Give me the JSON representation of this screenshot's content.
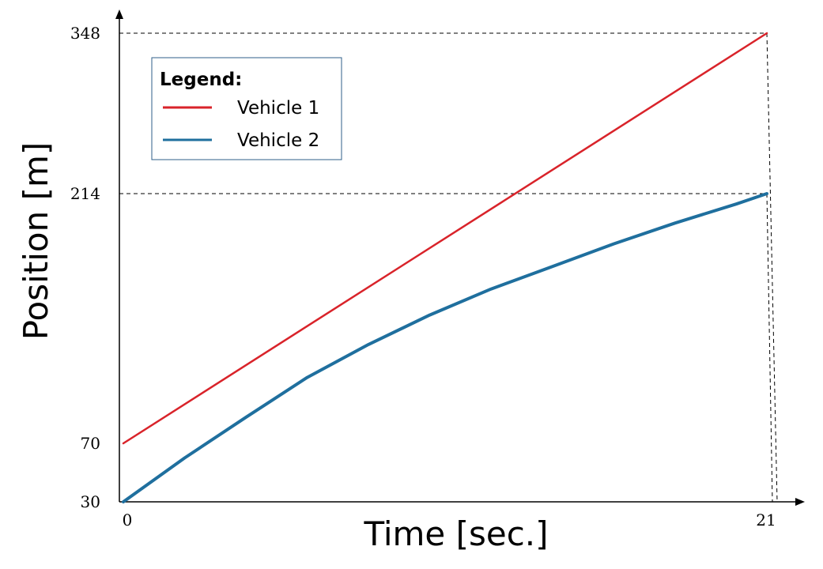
{
  "chart_data": {
    "type": "line",
    "xlabel": "Time [sec.]",
    "ylabel": "Position [m]",
    "x_ticks": [
      "0",
      "21"
    ],
    "y_ticks": [
      "30",
      "70",
      "214",
      "348"
    ],
    "x_tick_values": [
      0,
      21
    ],
    "y_tick_values": [
      30,
      70,
      214,
      348
    ],
    "xlim": [
      0,
      21
    ],
    "grid": false,
    "reference_lines": true,
    "legend": {
      "title": "Legend:",
      "position": "top-left"
    },
    "series": [
      {
        "name": "Vehicle 1",
        "color": "#d9232a",
        "x": [
          0,
          21
        ],
        "y": [
          70,
          348
        ]
      },
      {
        "name": "Vehicle 2",
        "color": "#1f6f9e",
        "x": [
          0,
          2,
          4,
          6,
          8,
          10,
          12,
          14,
          16,
          18,
          20,
          21
        ],
        "y": [
          30,
          60,
          85,
          108,
          127,
          144,
          159,
          172,
          185,
          197,
          208,
          214
        ]
      }
    ]
  }
}
